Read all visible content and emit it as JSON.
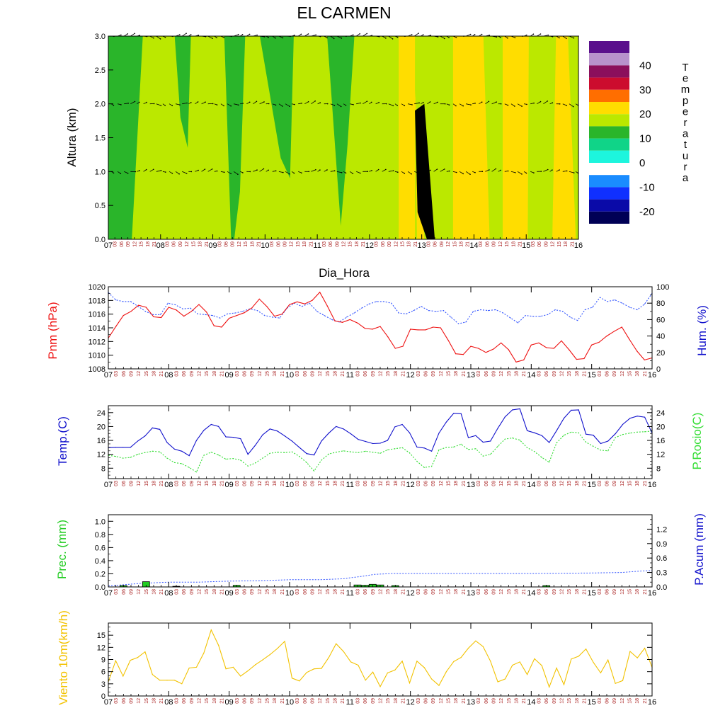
{
  "title": "EL CARMEN",
  "days": [
    "07",
    "08",
    "09",
    "10",
    "11",
    "12",
    "13",
    "14",
    "15",
    "16"
  ],
  "hours": [
    "03",
    "06",
    "09",
    "12",
    "15",
    "18",
    "21"
  ],
  "colors": {
    "red": "#ee1111",
    "blue": "#1111cc",
    "dashblue": "#3355ff",
    "green": "#22cc22",
    "dashgreen": "#33dd33",
    "yellow": "#ffcc00",
    "wind": "#f2c200",
    "hourtick": "#aa2222"
  },
  "chart_data": [
    {
      "type": "heatmap",
      "id": "temp-profile",
      "xlabel": "Dia_Hora",
      "ylabel": "Altura (km)",
      "ylim": [
        0,
        3
      ],
      "yticks": [
        "0.0",
        "0.5",
        "1.0",
        "1.5",
        "2.0",
        "2.5",
        "3.0"
      ],
      "legend": {
        "label": "Temperatura",
        "tick_labels": [
          "40",
          "30",
          "20",
          "10",
          "0",
          "-10",
          "-20"
        ],
        "colors": [
          "#5a0f8c",
          "#b892cc",
          "#8b0f5c",
          "#cc0c2e",
          "#ff6e00",
          "#ffdd00",
          "#bbe800",
          "#2ab52a",
          "#10d488",
          "#1df5dd",
          "#ffffff",
          "#1a8cff",
          "#1030ff",
          "#0a0aa8",
          "#000055"
        ]
      }
    },
    {
      "type": "line",
      "id": "pressure-humidity",
      "ylabel": "Pnm (hPa)",
      "ylabel_right": "Hum. (%)",
      "ylim": [
        1008,
        1020
      ],
      "ylim_right": [
        0,
        100
      ],
      "yticks": [
        "1008",
        "1010",
        "1012",
        "1014",
        "1016",
        "1018",
        "1020"
      ],
      "yticks_right": [
        "0",
        "20",
        "40",
        "60",
        "80",
        "100"
      ],
      "series": [
        {
          "values": [
            1012.5,
            1014.2,
            1015.8,
            1016.4,
            1017.3,
            1017.0,
            1015.6,
            1015.5,
            1017.0,
            1016.6,
            1015.7,
            1016.4,
            1017.4,
            1016.3,
            1014.3,
            1014.1,
            1015.4,
            1015.8,
            1016.2,
            1016.9,
            1018.2,
            1017.1,
            1015.7,
            1016.0,
            1017.4,
            1017.8,
            1017.5,
            1018.0,
            1019.2,
            1017.2,
            1015.0,
            1014.8,
            1015.2,
            1014.7,
            1013.9,
            1013.8,
            1014.2,
            1012.7,
            1011.0,
            1011.3,
            1013.8,
            1013.7,
            1013.7,
            1014.1,
            1014.0,
            1012.2,
            1010.2,
            1010.1,
            1011.3,
            1011.0,
            1010.4,
            1010.9,
            1011.8,
            1010.8,
            1009.0,
            1009.3,
            1011.5,
            1011.8,
            1011.1,
            1011.0,
            1012.1,
            1010.8,
            1009.4,
            1009.5,
            1011.5,
            1011.9,
            1012.8,
            1013.5,
            1014.1,
            1012.3,
            1010.6,
            1009.3,
            1009.6
          ]
        },
        {
          "values": [
            93,
            84,
            82,
            82,
            76,
            70,
            66,
            66,
            80,
            78,
            73,
            74,
            67,
            66,
            65,
            62,
            67,
            68,
            70,
            73,
            71,
            65,
            63,
            62,
            74,
            80,
            76,
            80,
            70,
            65,
            60,
            57,
            63,
            68,
            74,
            79,
            82,
            82,
            80,
            68,
            67,
            71,
            76,
            71,
            70,
            71,
            63,
            55,
            57,
            70,
            72,
            71,
            72,
            68,
            62,
            56,
            65,
            64,
            64,
            66,
            72,
            70,
            63,
            59,
            72,
            75,
            87,
            82,
            84,
            80,
            75,
            72,
            79,
            92
          ]
        }
      ]
    },
    {
      "type": "line",
      "id": "temp-dewpoint",
      "ylabel": "Temp.(C)",
      "ylabel_right": "P.Rocio(C)",
      "ylim": [
        5,
        26
      ],
      "ylim_right": [
        5,
        26
      ],
      "yticks": [
        "8",
        "12",
        "16",
        "20",
        "24"
      ],
      "yticks_right": [
        "8",
        "12",
        "16",
        "20",
        "24"
      ],
      "series": [
        {
          "values": [
            13.9,
            14.0,
            14.0,
            14.0,
            15.8,
            17.3,
            19.6,
            19.2,
            15.4,
            13.5,
            12.9,
            11.6,
            16.0,
            18.9,
            20.6,
            20.0,
            17.0,
            16.9,
            16.5,
            12.0,
            14.6,
            17.6,
            19.3,
            18.7,
            17.3,
            15.8,
            14.0,
            12.2,
            11.8,
            15.8,
            18.1,
            20.0,
            19.3,
            17.9,
            16.3,
            15.7,
            15.1,
            15.2,
            16.0,
            19.9,
            20.6,
            18.2,
            14.1,
            13.8,
            12.9,
            18.1,
            21.3,
            23.8,
            23.7,
            16.8,
            17.4,
            15.5,
            15.8,
            19.5,
            22.8,
            24.8,
            25.1,
            18.8,
            18.2,
            17.4,
            15.4,
            18.8,
            22.4,
            24.7,
            24.8,
            17.8,
            17.5,
            15.1,
            15.8,
            17.9,
            20.6,
            22.4,
            23.0,
            22.7,
            18.1
          ]
        },
        {
          "values": [
            11.7,
            11.4,
            10.9,
            11.1,
            12.0,
            12.5,
            12.9,
            12.7,
            10.9,
            9.6,
            9.3,
            8.2,
            6.9,
            11.7,
            12.6,
            11.8,
            10.6,
            10.8,
            10.3,
            8.6,
            9.5,
            10.9,
            12.3,
            12.6,
            12.5,
            12.7,
            11.4,
            9.6,
            7.2,
            10.3,
            12.1,
            12.6,
            13.0,
            12.7,
            12.5,
            12.9,
            12.6,
            12.3,
            13.3,
            13.6,
            13.9,
            12.4,
            10.0,
            8.2,
            8.5,
            13.3,
            14.0,
            14.1,
            14.9,
            13.4,
            13.6,
            11.5,
            12.0,
            14.3,
            16.4,
            16.7,
            16.1,
            13.9,
            12.8,
            11.1,
            9.7,
            15.3,
            17.5,
            18.4,
            18.2,
            15.5,
            14.3,
            13.2,
            13.0,
            16.8,
            17.7,
            18.1,
            18.4,
            18.5,
            18.7
          ]
        }
      ]
    },
    {
      "type": "bar",
      "id": "precipitation",
      "ylabel": "Prec. (mm)",
      "ylabel_right": "P.Acum (mm)",
      "ylim": [
        0,
        1.1
      ],
      "ylim_right": [
        0,
        1.5
      ],
      "yticks": [
        "0.0",
        "0.2",
        "0.4",
        "0.6",
        "0.8",
        "1.0"
      ],
      "yticks_right": [
        "0.0",
        "0.3",
        "0.6",
        "0.9",
        "1.2"
      ],
      "bars": [
        {
          "day": 0,
          "hour": 1,
          "value": 0.02
        },
        {
          "day": 0,
          "hour": 4,
          "value": 0.08
        },
        {
          "day": 0,
          "hour": 8,
          "value": 0.01
        },
        {
          "day": 2,
          "hour": 0,
          "value": 0.025
        },
        {
          "day": 4,
          "hour": 0,
          "value": 0.03
        },
        {
          "day": 4,
          "hour": 1,
          "value": 0.025
        },
        {
          "day": 4,
          "hour": 2,
          "value": 0.04
        },
        {
          "day": 4,
          "hour": 3,
          "value": 0.03
        },
        {
          "day": 4,
          "hour": 5,
          "value": 0.02
        },
        {
          "day": 7,
          "hour": 1,
          "value": 0.02
        }
      ],
      "accum_x": [
        0,
        0.5,
        1,
        1.5,
        2,
        2.5,
        3,
        3.5,
        3.9,
        4,
        4.2,
        4.4,
        4.7,
        5,
        6,
        7,
        8,
        8.5,
        8.8,
        9
      ],
      "accum_y": [
        0.02,
        0.07,
        0.1,
        0.1,
        0.12,
        0.13,
        0.15,
        0.15,
        0.17,
        0.19,
        0.22,
        0.26,
        0.28,
        0.28,
        0.28,
        0.28,
        0.29,
        0.3,
        0.33,
        0.34
      ]
    },
    {
      "type": "line",
      "id": "wind",
      "ylabel": "Viento 10m(km/h)",
      "ylim": [
        0,
        18
      ],
      "yticks": [
        "0",
        "3",
        "6",
        "9",
        "12",
        "15"
      ],
      "series": [
        {
          "values": [
            3.5,
            8.7,
            4.9,
            8.8,
            9.5,
            10.9,
            5.3,
            3.9,
            3.9,
            3.9,
            3.0,
            6.9,
            7.1,
            10.6,
            16.3,
            12.5,
            6.7,
            7.1,
            4.9,
            6.2,
            7.7,
            8.9,
            10.2,
            11.7,
            13.5,
            4.4,
            3.7,
            5.8,
            6.7,
            6.8,
            9.5,
            12.9,
            11.0,
            8.4,
            7.6,
            3.9,
            5.9,
            2.3,
            5.7,
            6.4,
            8.6,
            3.2,
            8.6,
            7.0,
            4.2,
            2.6,
            6.0,
            8.5,
            9.5,
            11.8,
            13.6,
            12.2,
            8.6,
            3.5,
            4.2,
            7.6,
            8.4,
            5.3,
            9.2,
            7.5,
            2.2,
            6.9,
            2.8,
            9.1,
            9.8,
            11.6,
            8.3,
            5.7,
            8.9,
            3.1,
            3.8,
            11.0,
            9.4,
            11.8,
            7.1
          ]
        }
      ]
    }
  ]
}
